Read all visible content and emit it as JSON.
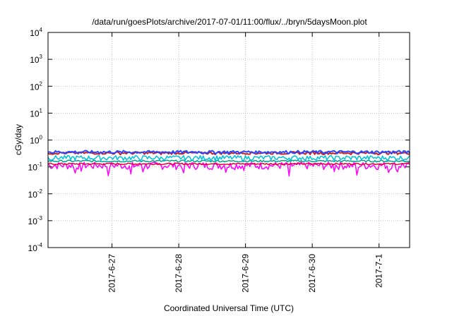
{
  "chart_data": {
    "type": "line",
    "title": "/data/run/goesPlots/archive/2017-07-01/11:00/flux/../bryn/5daysMoon.plot",
    "xlabel": "Coordinated Universal Time (UTC)",
    "ylabel": "cGy/day",
    "yscale": "log",
    "ylim": [
      0.0001,
      10000
    ],
    "xlim": [
      "2017-06-26 01:00",
      "2017-07-01 11:00"
    ],
    "grid": true,
    "x_ticks": [
      "2017-6-27",
      "2017-6-28",
      "2017-6-29",
      "2017-6-30",
      "2017-7-1"
    ],
    "y_ticks": [
      {
        "base": "10",
        "exp": "-4"
      },
      {
        "base": "10",
        "exp": "-3"
      },
      {
        "base": "10",
        "exp": "-2"
      },
      {
        "base": "10",
        "exp": "-1"
      },
      {
        "base": "10",
        "exp": "0"
      },
      {
        "base": "10",
        "exp": "1"
      },
      {
        "base": "10",
        "exp": "2"
      },
      {
        "base": "10",
        "exp": "3"
      },
      {
        "base": "10",
        "exp": "4"
      }
    ],
    "series": [
      {
        "color": "#ff00ff",
        "level": 0.115,
        "spread": 0.04,
        "dips": 0.07
      },
      {
        "color": "#e0003a",
        "level": 0.13,
        "spread": 0.01,
        "dips": 0
      },
      {
        "color": "#00a090",
        "level": 0.165,
        "spread": 0.015,
        "dips": 0
      },
      {
        "color": "#00c0d8",
        "level": 0.22,
        "spread": 0.05,
        "dips": 0
      },
      {
        "color": "#c82020",
        "level": 0.33,
        "spread": 0.04,
        "dips": 0
      },
      {
        "color": "#2a44ff",
        "level": 0.36,
        "spread": 0.05,
        "dips": 0
      }
    ]
  }
}
